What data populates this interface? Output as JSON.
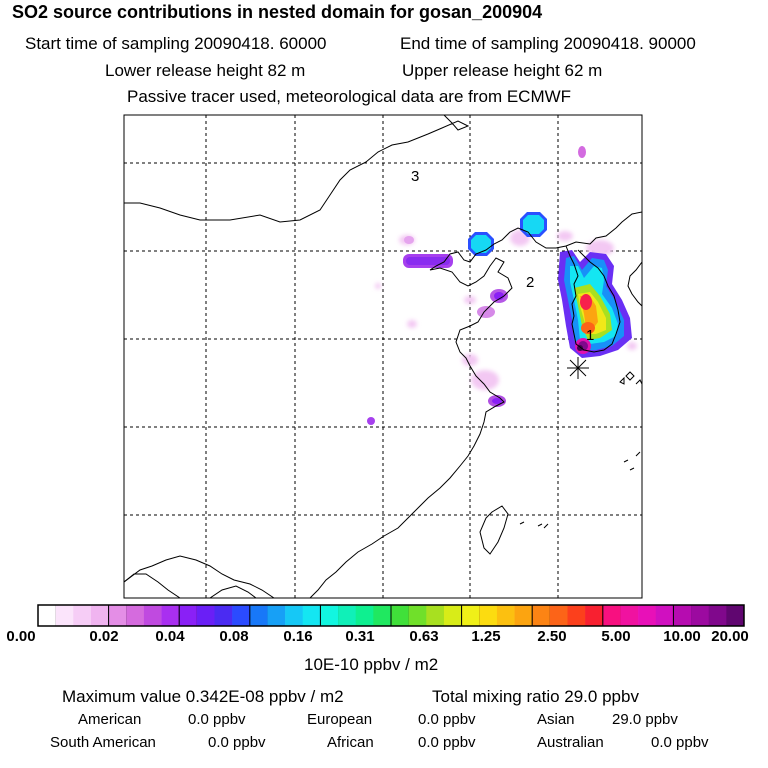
{
  "header": {
    "title": "SO2 source contributions in nested domain for gosan_200904",
    "start_time": "Start time of sampling 20090418. 60000",
    "end_time": "End time of sampling 20090418. 90000",
    "lower_release": "Lower release height   82 m",
    "upper_release": "Upper release height   62 m",
    "info": "Passive tracer used, meteorological data are from ECMWF"
  },
  "map": {
    "region_labels": [
      "3",
      "2",
      "1"
    ]
  },
  "colorbar": {
    "ticks": [
      "0.00",
      "0.02",
      "0.04",
      "0.08",
      "0.16",
      "0.31",
      "0.63",
      "1.25",
      "2.50",
      "5.00",
      "10.00",
      "20.00"
    ],
    "colors": [
      "#ffffff",
      "#fbe4fb",
      "#f6cdf6",
      "#f0b4f0",
      "#e48ee6",
      "#d56bde",
      "#c04ae0",
      "#a92ff0",
      "#8a20f6",
      "#6a1ff6",
      "#4b2bf2",
      "#2b4bff",
      "#1878f8",
      "#17a0f6",
      "#16c8f6",
      "#14e6f2",
      "#12f6e0",
      "#10f0b8",
      "#0ef090",
      "#20e860",
      "#40e03a",
      "#70e02a",
      "#a8e020",
      "#d8ec18",
      "#f0f018",
      "#fcdc10",
      "#fcc010",
      "#fca410",
      "#fc8414",
      "#fc6418",
      "#fc401c",
      "#f82030",
      "#f81080",
      "#f012a0",
      "#e810b8",
      "#d010c0",
      "#b60cb0",
      "#9c0aa0",
      "#80088c",
      "#600670"
    ],
    "unit": "10E-10 ppbv / m2"
  },
  "summary": {
    "max_value": "Maximum value  0.342E-08 ppbv / m2",
    "total": "Total mixing ratio       29.0 ppbv",
    "regions": [
      {
        "name": "American",
        "value": "0.0 ppbv"
      },
      {
        "name": "European",
        "value": "0.0 ppbv"
      },
      {
        "name": "Asian",
        "value": "29.0 ppbv"
      },
      {
        "name": "South American",
        "value": "0.0 ppbv"
      },
      {
        "name": "African",
        "value": "0.0 ppbv"
      },
      {
        "name": "Australian",
        "value": "0.0 ppbv"
      }
    ]
  }
}
